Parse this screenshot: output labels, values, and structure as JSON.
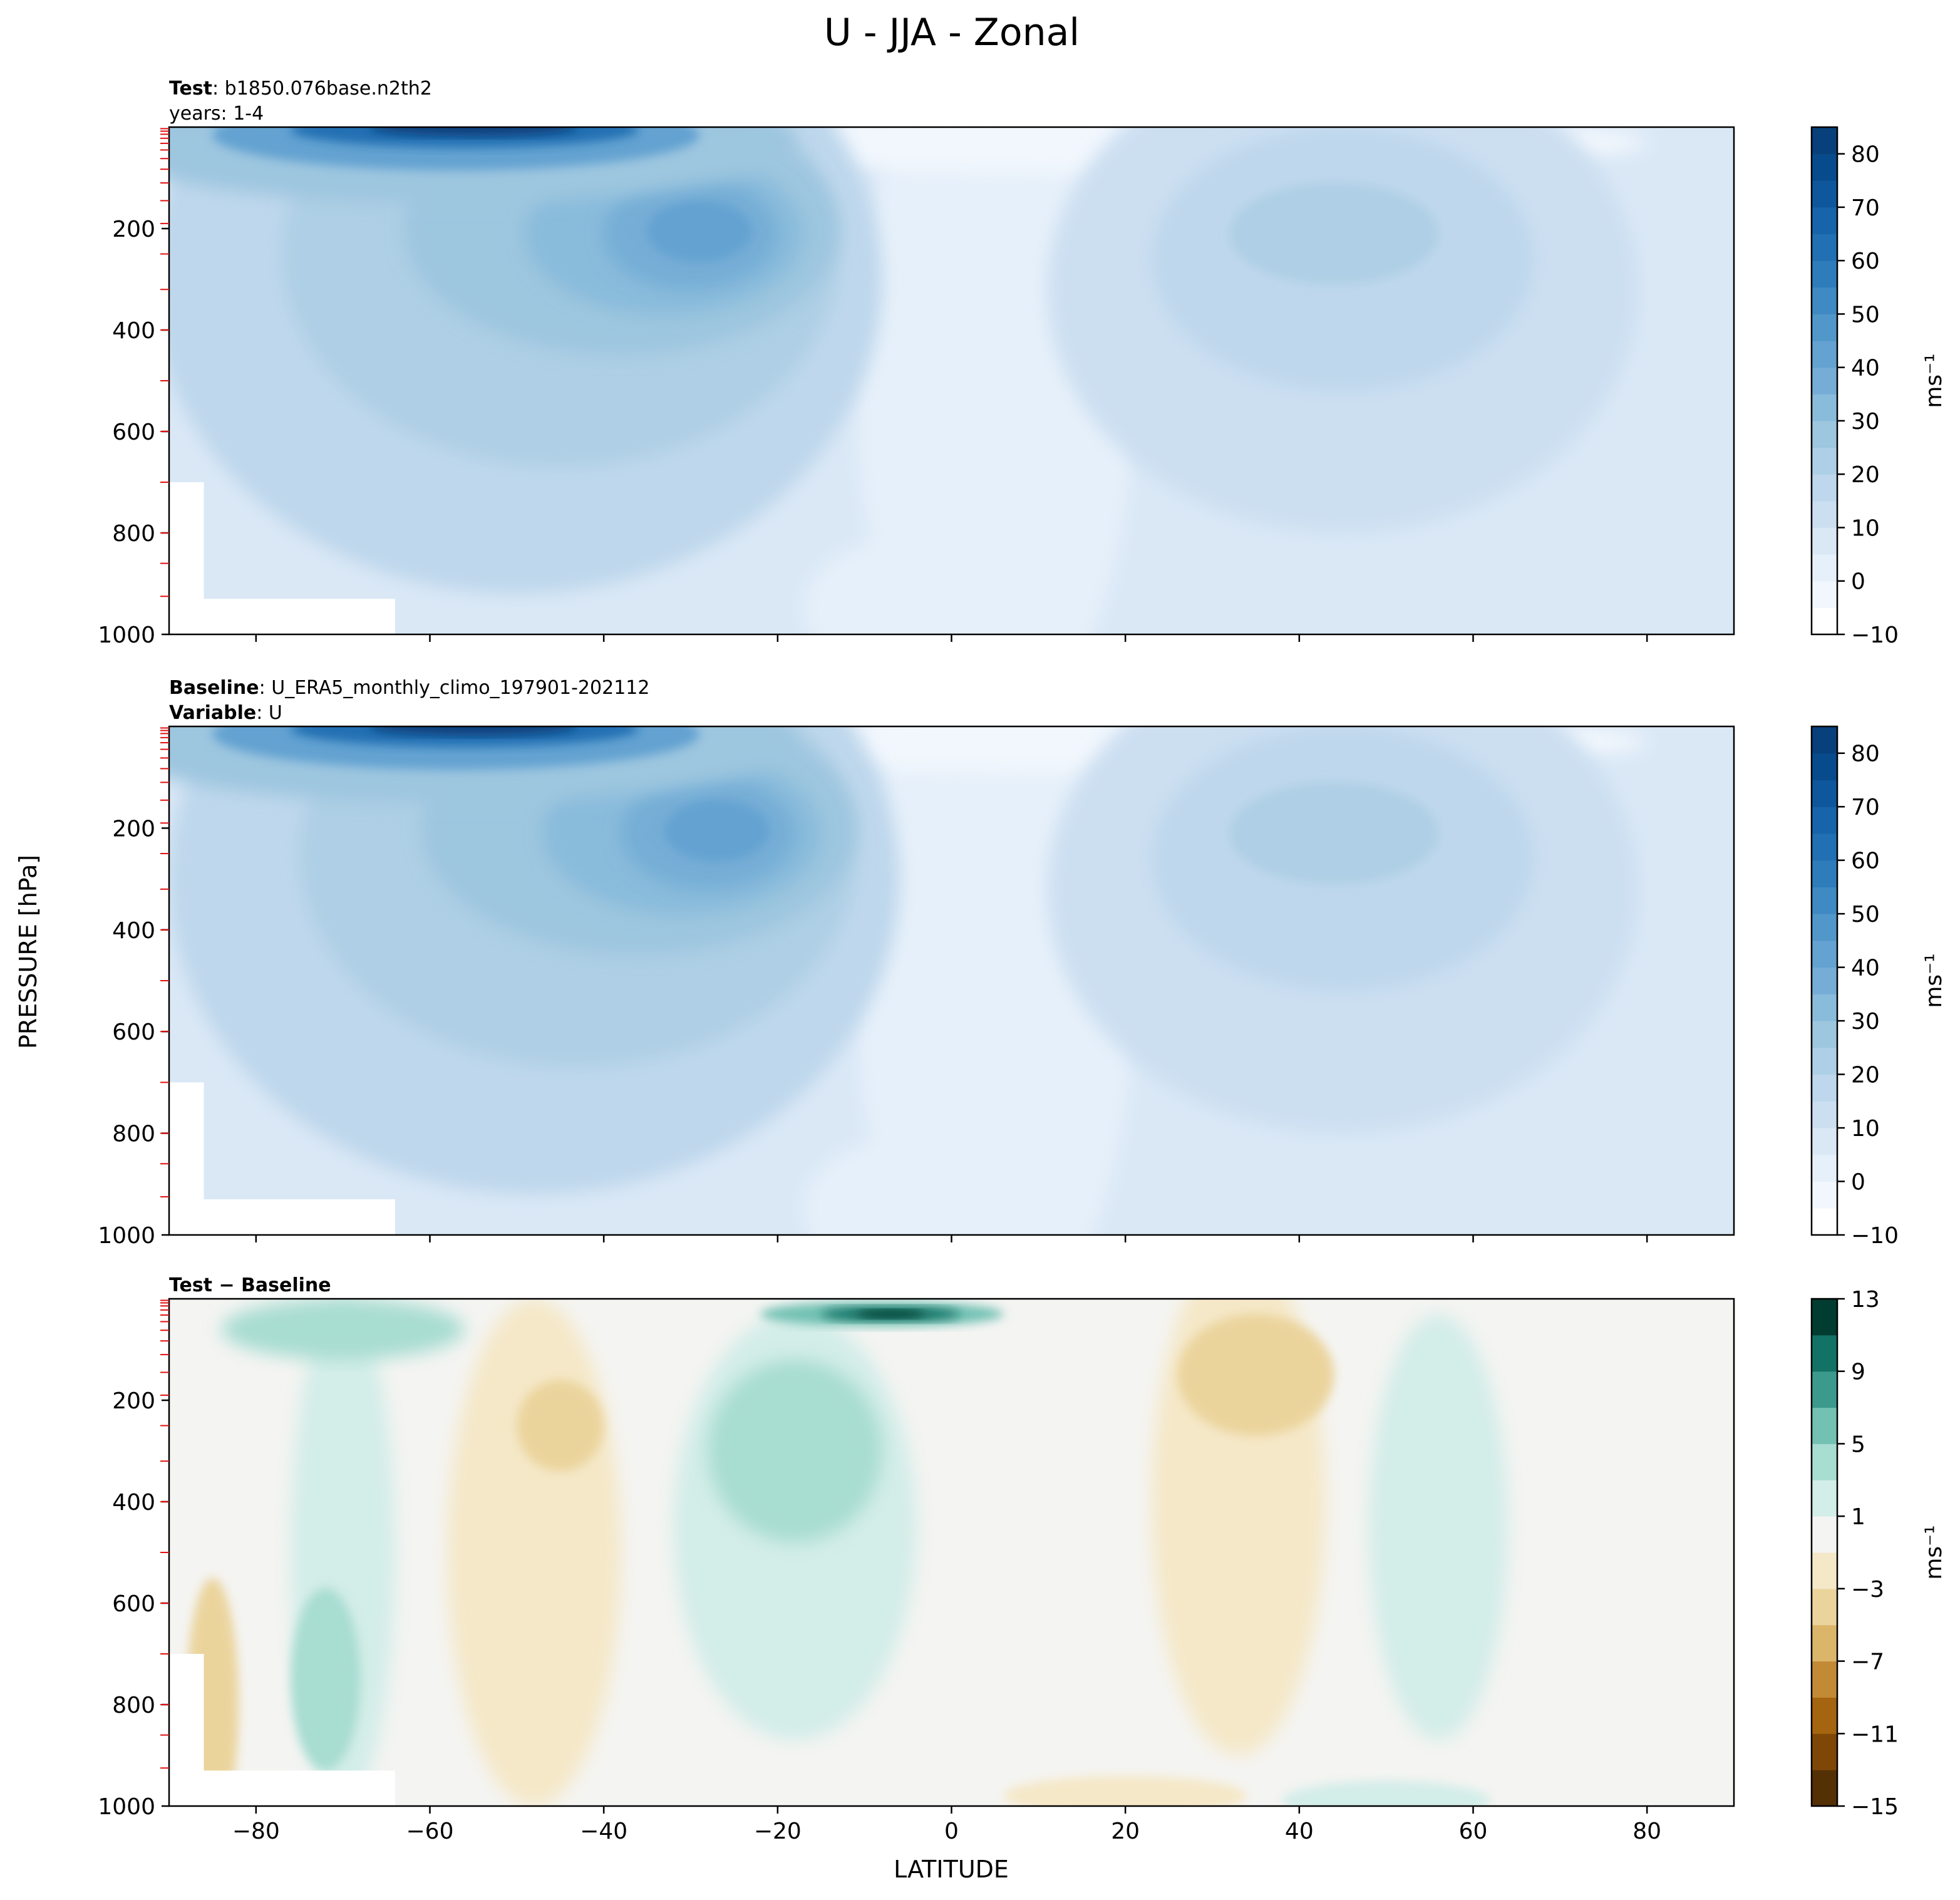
{
  "figure_title": "U - JJA - Zonal",
  "shared_ylabel": "PRESSURE [hPa]",
  "shared_xlabel": "LATITUDE",
  "chart_data": [
    {
      "type": "heatmap",
      "panel": "test",
      "header": [
        {
          "bold": "Test",
          "text": ": b1850.076base.n2th2"
        },
        {
          "bold": "",
          "text": "years: 1-4"
        }
      ],
      "xlim": [
        -90,
        90
      ],
      "ylim": [
        1000,
        0
      ],
      "yticks": [
        200,
        400,
        600,
        800,
        1000
      ],
      "xticks": [
        -80,
        -60,
        -40,
        -20,
        0,
        20,
        40,
        60,
        80
      ],
      "colorbar": {
        "label": "ms⁻¹",
        "range": [
          -10,
          85
        ],
        "levels": [
          -10,
          -5,
          0,
          5,
          10,
          15,
          20,
          25,
          30,
          35,
          40,
          45,
          50,
          55,
          60,
          65,
          70,
          75,
          80,
          85
        ],
        "ticks": [
          -10,
          0,
          10,
          20,
          30,
          40,
          50,
          60,
          70,
          80
        ],
        "colors": [
          "#ffffff",
          "#f2f7fd",
          "#e6f0fa",
          "#dae8f6",
          "#ccdff1",
          "#bed7ec",
          "#aecfe5",
          "#9dc6df",
          "#89bbdb",
          "#75add6",
          "#63a2d1",
          "#5197ca",
          "#3f8ac2",
          "#2f7cbb",
          "#2170b3",
          "#1764ab",
          "#0e579d",
          "#084b8c",
          "#08407b",
          "#08336a"
        ]
      },
      "features": [
        {
          "label": "SH polar-night jet core, upper levels",
          "lat": -55,
          "p": 10,
          "u": 85
        },
        {
          "label": "SH subtropical jet",
          "lat": -30,
          "p": 200,
          "u": 42
        },
        {
          "label": "NH jet",
          "lat": 45,
          "p": 200,
          "u": 22
        },
        {
          "label": "Tropical easterlies",
          "lat": 5,
          "p": 150,
          "u": -5
        }
      ]
    },
    {
      "type": "heatmap",
      "panel": "baseline",
      "header": [
        {
          "bold": "Baseline",
          "text": ": U_ERA5_monthly_climo_197901-202112"
        },
        {
          "bold": "Variable",
          "text": ": U"
        }
      ],
      "xlim": [
        -90,
        90
      ],
      "ylim": [
        1000,
        0
      ],
      "yticks": [
        200,
        400,
        600,
        800,
        1000
      ],
      "xticks": [
        -80,
        -60,
        -40,
        -20,
        0,
        20,
        40,
        60,
        80
      ],
      "colorbar": {
        "label": "ms⁻¹",
        "range": [
          -10,
          85
        ],
        "levels": [
          -10,
          -5,
          0,
          5,
          10,
          15,
          20,
          25,
          30,
          35,
          40,
          45,
          50,
          55,
          60,
          65,
          70,
          75,
          80,
          85
        ],
        "ticks": [
          -10,
          0,
          10,
          20,
          30,
          40,
          50,
          60,
          70,
          80
        ],
        "colors": [
          "#ffffff",
          "#f2f7fd",
          "#e6f0fa",
          "#dae8f6",
          "#ccdff1",
          "#bed7ec",
          "#aecfe5",
          "#9dc6df",
          "#89bbdb",
          "#75add6",
          "#63a2d1",
          "#5197ca",
          "#3f8ac2",
          "#2f7cbb",
          "#2170b3",
          "#1764ab",
          "#0e579d",
          "#084b8c",
          "#08407b",
          "#08336a"
        ]
      },
      "features": [
        {
          "label": "SH polar-night jet core, upper levels",
          "lat": -55,
          "p": 10,
          "u": 85
        },
        {
          "label": "SH subtropical jet",
          "lat": -28,
          "p": 200,
          "u": 42
        },
        {
          "label": "NH jet",
          "lat": 45,
          "p": 200,
          "u": 24
        }
      ]
    },
    {
      "type": "heatmap",
      "panel": "difference",
      "header": [
        {
          "bold": "Test − Baseline",
          "text": ""
        }
      ],
      "xlim": [
        -90,
        90
      ],
      "ylim": [
        1000,
        0
      ],
      "yticks": [
        200,
        400,
        600,
        800,
        1000
      ],
      "xticks": [
        -80,
        -60,
        -40,
        -20,
        0,
        20,
        40,
        60,
        80
      ],
      "colorbar": {
        "label": "ms⁻¹",
        "range": [
          -15,
          13
        ],
        "levels": [
          -15,
          -13,
          -11,
          -9,
          -7,
          -5,
          -3,
          -1,
          1,
          3,
          5,
          7,
          9,
          11,
          13
        ],
        "ticks": [
          -15,
          -11,
          -7,
          -3,
          1,
          5,
          9,
          13
        ],
        "colors": [
          "#543005",
          "#7f4707",
          "#a5640f",
          "#c38a35",
          "#dbb56a",
          "#ebd49c",
          "#f5e8c8",
          "#f4f4f2",
          "#d3ede8",
          "#a8ddd2",
          "#72c1b3",
          "#3c9a8d",
          "#137266",
          "#003c30"
        ]
      },
      "features": [
        {
          "label": "Positive anomaly near tropical upper levels",
          "lat": -7,
          "p": 30,
          "du": 13
        },
        {
          "label": "Positive anomaly SH subtropics",
          "lat": -20,
          "p": 300,
          "du": 4
        },
        {
          "label": "Negative anomaly SH midlatitudes",
          "lat": -45,
          "p": 250,
          "du": -3
        },
        {
          "label": "Negative anomaly NH subtropics",
          "lat": 35,
          "p": 150,
          "du": -3
        },
        {
          "label": "Positive anomaly NH high latitudes",
          "lat": 58,
          "p": 300,
          "du": 2
        }
      ]
    }
  ]
}
